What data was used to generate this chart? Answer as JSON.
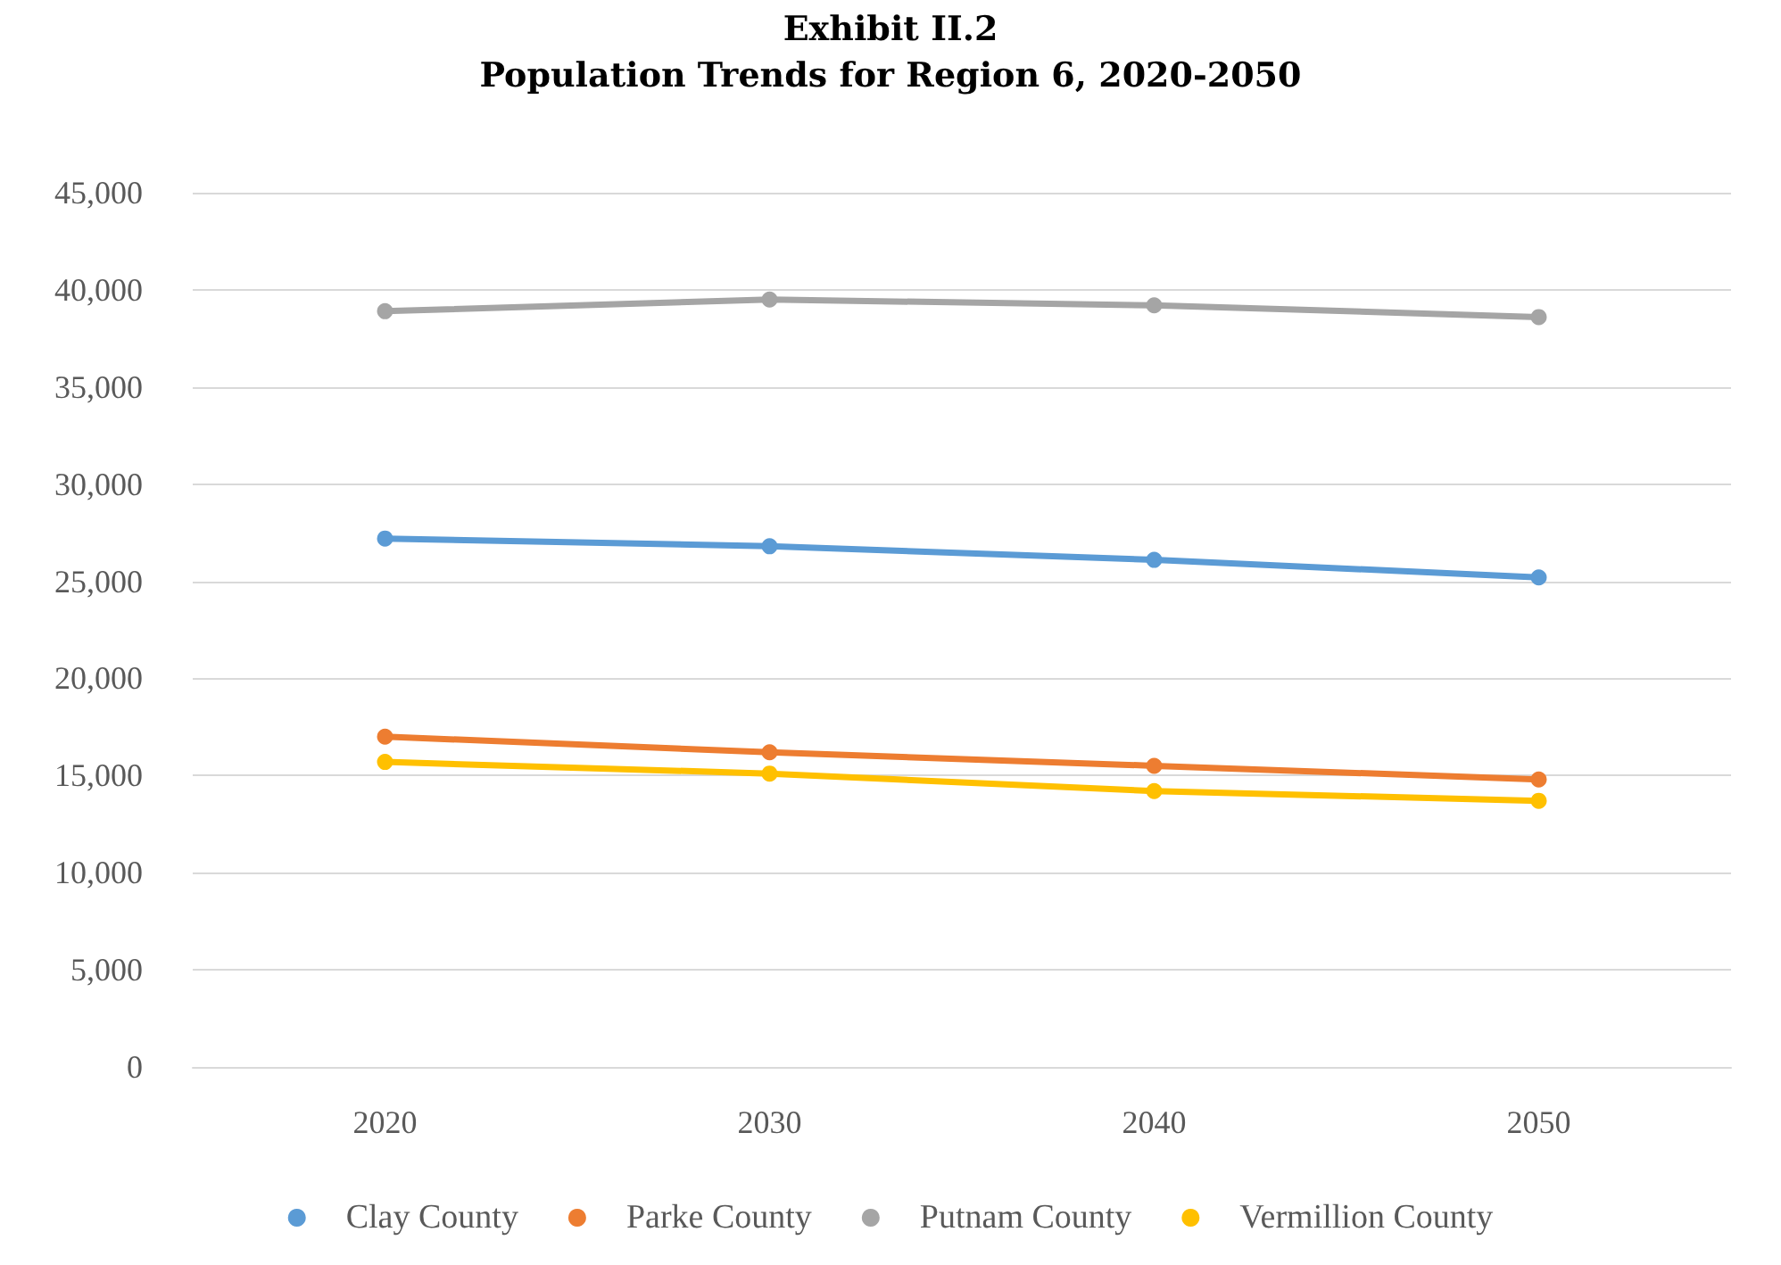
{
  "chart_data": {
    "type": "line",
    "title": "Exhibit II.2",
    "subtitle": "Population Trends for Region 6, 2020-2050",
    "categories": [
      "2020",
      "2030",
      "2040",
      "2050"
    ],
    "series": [
      {
        "name": "Clay County",
        "color": "#5b9bd5",
        "values": [
          27200,
          26800,
          26100,
          25200
        ]
      },
      {
        "name": "Parke County",
        "color": "#ed7d31",
        "values": [
          17000,
          16200,
          15500,
          14800
        ]
      },
      {
        "name": "Putnam County",
        "color": "#a5a5a5",
        "values": [
          38900,
          39500,
          39200,
          38600
        ]
      },
      {
        "name": "Vermillion County",
        "color": "#ffc000",
        "values": [
          15700,
          15100,
          14200,
          13700
        ]
      }
    ],
    "ylim": [
      0,
      45000
    ],
    "yticks": [
      0,
      {
        "value": 5000,
        "label": "5,000"
      },
      {
        "value": 10000,
        "label": "10,000"
      },
      {
        "value": 15000,
        "label": "15,000"
      },
      {
        "value": 20000,
        "label": "20,000"
      },
      {
        "value": 25000,
        "label": "25,000"
      },
      {
        "value": 30000,
        "label": "30,000"
      },
      {
        "value": 35000,
        "label": "35,000"
      },
      {
        "value": 40000,
        "label": "40,000"
      },
      {
        "value": 45000,
        "label": "45,000"
      }
    ],
    "grid": "y",
    "legend": "bottom",
    "marker": "circle",
    "line_style": "solid"
  }
}
